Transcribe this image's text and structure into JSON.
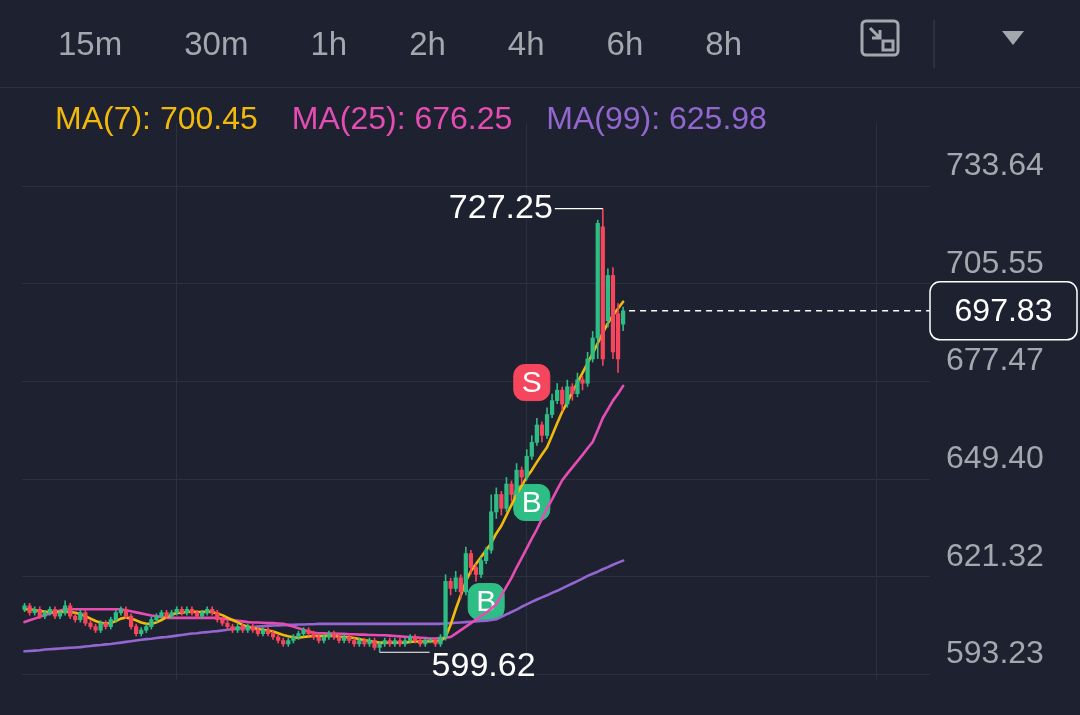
{
  "chart_data": {
    "type": "candlestick",
    "categories": [
      null,
      null,
      null,
      null,
      null,
      null,
      null,
      null,
      null,
      null,
      null,
      null,
      null,
      null,
      null,
      null,
      null,
      null,
      null,
      null,
      null,
      null,
      null,
      null,
      null,
      null,
      null,
      null,
      null,
      null,
      null,
      null,
      null,
      null,
      null,
      null,
      null,
      null,
      null,
      null,
      null,
      null,
      null,
      null,
      null,
      null,
      null,
      null,
      null,
      null,
      null,
      null,
      null,
      null,
      null,
      null,
      null,
      null,
      null,
      null,
      null,
      null,
      null,
      null,
      null,
      null,
      null,
      null,
      null,
      null,
      null,
      null,
      null,
      null,
      null,
      null,
      null,
      null,
      null,
      null,
      null,
      null,
      null,
      null,
      null,
      null,
      null,
      null,
      null,
      null,
      null,
      null,
      null,
      null,
      null,
      null,
      null,
      null,
      null,
      null,
      null,
      null,
      null,
      null,
      null,
      null,
      null,
      null,
      null,
      null,
      null,
      null,
      null,
      null,
      null,
      null,
      null,
      null,
      null
    ],
    "ohlc": [
      [
        612,
        613.8,
        611.2,
        613
      ],
      [
        613,
        613.8,
        610.2,
        611
      ],
      [
        611,
        612.8,
        610.2,
        612
      ],
      [
        612,
        612.8,
        609.2,
        610
      ],
      [
        610,
        611.8,
        609.2,
        611
      ],
      [
        611,
        612.8,
        610.2,
        612
      ],
      [
        612,
        612.8,
        609.2,
        610
      ],
      [
        610,
        611.8,
        609.2,
        611
      ],
      [
        611,
        614.5,
        610.2,
        613
      ],
      [
        613,
        613.8,
        609.2,
        610
      ],
      [
        610,
        610.8,
        608.2,
        609
      ],
      [
        609,
        611.8,
        608.2,
        611
      ],
      [
        611,
        611.8,
        607.2,
        608
      ],
      [
        608,
        608.8,
        606.2,
        607
      ],
      [
        607,
        607.8,
        605.2,
        606
      ],
      [
        606,
        608.8,
        605.2,
        608
      ],
      [
        608,
        608.8,
        606.2,
        607
      ],
      [
        607,
        609.8,
        606.2,
        609
      ],
      [
        609,
        611.8,
        608.2,
        611
      ],
      [
        611,
        612.8,
        610.2,
        612
      ],
      [
        612,
        612.8,
        609.2,
        610
      ],
      [
        610,
        610.8,
        606.2,
        607
      ],
      [
        607,
        607.8,
        604.2,
        605
      ],
      [
        605,
        606.8,
        604.2,
        606
      ],
      [
        606,
        607.8,
        605.2,
        607
      ],
      [
        607,
        609.8,
        606.2,
        609
      ],
      [
        609,
        610.8,
        608.2,
        610
      ],
      [
        610,
        611.8,
        609.2,
        611
      ],
      [
        611,
        611.8,
        609.2,
        610
      ],
      [
        610,
        611.8,
        609.2,
        611
      ],
      [
        611,
        612.8,
        610.2,
        612
      ],
      [
        612,
        612.8,
        610.2,
        611
      ],
      [
        611,
        612.8,
        610.2,
        612
      ],
      [
        612,
        612.8,
        610.2,
        611
      ],
      [
        611,
        611.8,
        609.2,
        610
      ],
      [
        610,
        611.8,
        609.2,
        611
      ],
      [
        611,
        612.8,
        610.2,
        612
      ],
      [
        612,
        612.8,
        610.2,
        611
      ],
      [
        611,
        611.8,
        608.2,
        609
      ],
      [
        609,
        609.8,
        607.2,
        608
      ],
      [
        608,
        608.8,
        606.2,
        607
      ],
      [
        607,
        607.8,
        605.2,
        606
      ],
      [
        606,
        607.8,
        605.2,
        607
      ],
      [
        607,
        607.8,
        605.2,
        606
      ],
      [
        606,
        607.8,
        605.2,
        607
      ],
      [
        607,
        607.8,
        605.2,
        606
      ],
      [
        606,
        606.8,
        604.2,
        605
      ],
      [
        605,
        606.8,
        604.2,
        606
      ],
      [
        606,
        606.8,
        604.2,
        605
      ],
      [
        605,
        605.8,
        603.2,
        604
      ],
      [
        604,
        604.8,
        602.2,
        603
      ],
      [
        603,
        603.8,
        601.2,
        602
      ],
      [
        602,
        603.8,
        601.2,
        603
      ],
      [
        603,
        604.8,
        602.2,
        604
      ],
      [
        604,
        605.8,
        603.2,
        605
      ],
      [
        605,
        606.8,
        604.2,
        606
      ],
      [
        606,
        606.8,
        604.2,
        605
      ],
      [
        605,
        605.8,
        603.2,
        604
      ],
      [
        604,
        604.8,
        602.2,
        603
      ],
      [
        603,
        604.8,
        602.2,
        604
      ],
      [
        604,
        605.8,
        603.2,
        605
      ],
      [
        605,
        605.8,
        603.2,
        604
      ],
      [
        604,
        604.8,
        602.2,
        603
      ],
      [
        603,
        604.8,
        602.2,
        604
      ],
      [
        604,
        604.8,
        602.2,
        603
      ],
      [
        603,
        603.8,
        601.2,
        602
      ],
      [
        602,
        603.8,
        601.2,
        603
      ],
      [
        603,
        603.8,
        601.2,
        602
      ],
      [
        602,
        603.8,
        601.2,
        603
      ],
      [
        603,
        603.8,
        600.2,
        601
      ],
      [
        601,
        602.8,
        599.62,
        602
      ],
      [
        602,
        603.8,
        601.2,
        603
      ],
      [
        603,
        603.8,
        601.2,
        602
      ],
      [
        602,
        603.8,
        601.2,
        603
      ],
      [
        603,
        603.8,
        601.2,
        602
      ],
      [
        602,
        603.8,
        601.2,
        603
      ],
      [
        603,
        604.8,
        602.2,
        604
      ],
      [
        604,
        604.8,
        602.2,
        603
      ],
      [
        603,
        603.8,
        601.2,
        602
      ],
      [
        602,
        603.8,
        601.2,
        603
      ],
      [
        603,
        603.8,
        602.2,
        603
      ],
      [
        603,
        603.8,
        601.2,
        602
      ],
      [
        602,
        604.8,
        601.2,
        604
      ],
      [
        604,
        622,
        603,
        620
      ],
      [
        620,
        621,
        616,
        618
      ],
      [
        618,
        623,
        617,
        621
      ],
      [
        621,
        622,
        615,
        617
      ],
      [
        617,
        630,
        616,
        628
      ],
      [
        628,
        629,
        622,
        624
      ],
      [
        624,
        625,
        620,
        622
      ],
      [
        622,
        627,
        621,
        626
      ],
      [
        626,
        630,
        625,
        629
      ],
      [
        629,
        645,
        628,
        640
      ],
      [
        640,
        647,
        638,
        645
      ],
      [
        645,
        646,
        639,
        641
      ],
      [
        641,
        650,
        640,
        648
      ],
      [
        648,
        649,
        643,
        645
      ],
      [
        645,
        654,
        644,
        652
      ],
      [
        652,
        653,
        648,
        650
      ],
      [
        650,
        658,
        649,
        656
      ],
      [
        656,
        662,
        655,
        660
      ],
      [
        660,
        667,
        659,
        665
      ],
      [
        665,
        666,
        660,
        662
      ],
      [
        662,
        670,
        661,
        668
      ],
      [
        668,
        674,
        667,
        672
      ],
      [
        672,
        677,
        671,
        675
      ],
      [
        675,
        676,
        669,
        671
      ],
      [
        671,
        678,
        670,
        676
      ],
      [
        676,
        677,
        672,
        674
      ],
      [
        674,
        680,
        673,
        678
      ],
      [
        678,
        679,
        675,
        677
      ],
      [
        677,
        686,
        676,
        684
      ],
      [
        684,
        692,
        683,
        690
      ],
      [
        690,
        724,
        684,
        723
      ],
      [
        722,
        727.25,
        682,
        684
      ],
      [
        695,
        710,
        693,
        708
      ],
      [
        708,
        710.4,
        684,
        686
      ],
      [
        697,
        700,
        680,
        684
      ],
      [
        694,
        699,
        692,
        697.83
      ]
    ],
    "colors": [
      "#2ebd85",
      "#f6465d",
      "#2ebd85",
      "#f6465d",
      "#2ebd85",
      "#2ebd85",
      "#f6465d",
      "#2ebd85",
      "#2ebd85",
      "#f6465d",
      "#f6465d",
      "#2ebd85",
      "#f6465d",
      "#f6465d",
      "#f6465d",
      "#2ebd85",
      "#f6465d",
      "#2ebd85",
      "#2ebd85",
      "#2ebd85",
      "#f6465d",
      "#f6465d",
      "#f6465d",
      "#2ebd85",
      "#2ebd85",
      "#2ebd85",
      "#2ebd85",
      "#2ebd85",
      "#f6465d",
      "#2ebd85",
      "#2ebd85",
      "#f6465d",
      "#2ebd85",
      "#f6465d",
      "#f6465d",
      "#2ebd85",
      "#2ebd85",
      "#f6465d",
      "#f6465d",
      "#f6465d",
      "#f6465d",
      "#f6465d",
      "#2ebd85",
      "#f6465d",
      "#2ebd85",
      "#f6465d",
      "#f6465d",
      "#2ebd85",
      "#f6465d",
      "#f6465d",
      "#f6465d",
      "#f6465d",
      "#2ebd85",
      "#2ebd85",
      "#2ebd85",
      "#2ebd85",
      "#f6465d",
      "#f6465d",
      "#f6465d",
      "#2ebd85",
      "#2ebd85",
      "#f6465d",
      "#f6465d",
      "#2ebd85",
      "#f6465d",
      "#f6465d",
      "#2ebd85",
      "#f6465d",
      "#2ebd85",
      "#f6465d",
      "#2ebd85",
      "#2ebd85",
      "#f6465d",
      "#2ebd85",
      "#f6465d",
      "#2ebd85",
      "#2ebd85",
      "#f6465d",
      "#f6465d",
      "#2ebd85",
      "#2ebd85",
      "#f6465d",
      "#2ebd85",
      "#2ebd85",
      "#f6465d",
      "#2ebd85",
      "#f6465d",
      "#2ebd85",
      "#f6465d",
      "#f6465d",
      "#2ebd85",
      "#2ebd85",
      "#2ebd85",
      "#2ebd85",
      "#f6465d",
      "#2ebd85",
      "#f6465d",
      "#2ebd85",
      "#f6465d",
      "#2ebd85",
      "#2ebd85",
      "#2ebd85",
      "#f6465d",
      "#2ebd85",
      "#2ebd85",
      "#2ebd85",
      "#f6465d",
      "#2ebd85",
      "#f6465d",
      "#2ebd85",
      "#f6465d",
      "#2ebd85",
      "#2ebd85",
      "#2ebd85",
      "#f6465d",
      "#2ebd85",
      "#f6465d",
      "#f6465d",
      "#2ebd85"
    ],
    "series": [
      {
        "type": "line",
        "name": "MA(7): 700.45",
        "color": "#f0b90b",
        "values": [
          612,
          612,
          611.8,
          611.5,
          611.3,
          611.2,
          611.1,
          611.2,
          611.3,
          611.2,
          611,
          610.6,
          610,
          609.3,
          608.6,
          608.1,
          607.9,
          608,
          608.6,
          609.3,
          609.6,
          609.3,
          608.8,
          608.2,
          607.8,
          607.8,
          608.2,
          608.9,
          609.7,
          610.4,
          610.9,
          611,
          611.2,
          611.3,
          611.2,
          611.2,
          611.3,
          611.2,
          610.8,
          610.3,
          609.6,
          608.9,
          608.2,
          607.5,
          607,
          606.6,
          606.3,
          606.1,
          605.9,
          605.6,
          605.1,
          604.6,
          604.2,
          603.9,
          603.8,
          604,
          604.2,
          604.3,
          604.3,
          604.3,
          604.4,
          604.3,
          604.1,
          604,
          603.9,
          603.7,
          603.4,
          603.1,
          602.9,
          602.6,
          602.4,
          602.4,
          602.4,
          602.4,
          602.4,
          602.4,
          602.6,
          602.7,
          602.7,
          602.7,
          602.8,
          602.8,
          602.9,
          604,
          607.5,
          612,
          616,
          620,
          623,
          625,
          627,
          629,
          631,
          633.8,
          636,
          639,
          642,
          645,
          647.5,
          650,
          652,
          654.3,
          656.5,
          658.6,
          662,
          665.5,
          668.8,
          671.5,
          674.5,
          677.2,
          680,
          682.8,
          685.6,
          688.5,
          691.5,
          694.3,
          696.5,
          698.5,
          700.45
        ]
      },
      {
        "type": "line",
        "name": "MA(25): 676.25",
        "color": "#e54db4",
        "values": [
          608.3,
          608.8,
          609.3,
          609.8,
          610.3,
          610.8,
          611.2,
          611.6,
          612,
          612,
          612,
          612,
          612,
          612,
          612,
          612,
          612,
          612,
          612,
          612,
          611.7,
          611.4,
          611.1,
          610.8,
          610.5,
          610.2,
          610,
          609.8,
          609.5,
          609.5,
          609.5,
          609.5,
          609.5,
          609.5,
          609.5,
          609.5,
          609.5,
          609.5,
          609.5,
          609.3,
          609.1,
          608.9,
          608.7,
          608.5,
          608.3,
          608.2,
          608.2,
          608.1,
          608,
          608,
          607.9,
          607.8,
          607.4,
          607,
          606.5,
          606.1,
          605.6,
          605.2,
          605.1,
          605.1,
          605,
          605,
          604.9,
          604.9,
          604.8,
          604.8,
          604.7,
          604.7,
          604.6,
          604.6,
          604.5,
          604.5,
          604.4,
          604.3,
          604.2,
          604.1,
          604,
          603.9,
          603.8,
          603.7,
          603.6,
          603.6,
          603.7,
          603.8,
          604,
          605,
          606,
          607,
          608,
          609,
          610,
          611,
          612.2,
          613.4,
          616,
          618.5,
          621,
          624,
          626.7,
          629.5,
          632.3,
          635,
          638,
          641,
          643.6,
          646.4,
          649.1,
          651,
          652.8,
          654.6,
          656.4,
          658.3,
          660.1,
          663.5,
          667,
          669.5,
          672,
          674,
          676.25
        ]
      },
      {
        "type": "line",
        "name": "MA(99): 625.98",
        "color": "#9366d0",
        "values": [
          599.9,
          600,
          600.1,
          600.2,
          600.4,
          600.5,
          600.6,
          600.7,
          600.8,
          600.9,
          601,
          601.1,
          601.3,
          601.4,
          601.6,
          601.7,
          601.9,
          602,
          602.2,
          602.4,
          602.6,
          602.8,
          603,
          603.2,
          603.4,
          603.5,
          603.7,
          603.9,
          604,
          604.2,
          604.4,
          604.6,
          604.8,
          605,
          605.1,
          605.3,
          605.4,
          605.6,
          605.7,
          605.9,
          606.1,
          606.3,
          606.5,
          606.7,
          606.8,
          606.9,
          607,
          607.1,
          607.2,
          607.3,
          607.3,
          607.4,
          607.5,
          607.5,
          607.6,
          607.6,
          607.7,
          607.7,
          607.8,
          607.8,
          607.8,
          607.8,
          607.8,
          607.8,
          607.8,
          607.8,
          607.8,
          607.8,
          607.8,
          607.8,
          607.8,
          607.8,
          607.8,
          607.8,
          607.8,
          607.8,
          607.8,
          607.8,
          607.8,
          607.8,
          607.8,
          607.8,
          607.8,
          607.9,
          608,
          608.1,
          608.2,
          608.3,
          608.4,
          608.5,
          608.6,
          608.7,
          608.9,
          609.1,
          609.8,
          610.5,
          611.2,
          611.9,
          612.7,
          613.4,
          614.1,
          614.8,
          615.4,
          616,
          616.7,
          617.3,
          618,
          618.7,
          619.4,
          620.1,
          620.8,
          621.6,
          622.2,
          622.8,
          623.5,
          624.1,
          624.8,
          625.4,
          625.98
        ]
      },
      {
        "type": "scatter",
        "color": "#2ebd85",
        "marker": "square",
        "values": [
          null,
          null,
          null,
          null,
          null,
          null,
          null,
          null,
          null,
          null,
          null,
          null,
          null,
          null,
          null,
          null,
          null,
          null,
          null,
          null,
          null,
          null,
          null,
          null,
          null,
          null,
          null,
          null,
          null,
          null,
          null,
          null,
          null,
          null,
          null,
          null,
          null,
          null,
          null,
          null,
          null,
          null,
          null,
          null,
          null,
          null,
          null,
          null,
          null,
          null,
          null,
          null,
          null,
          null,
          null,
          null,
          null,
          null,
          null,
          null,
          null,
          null,
          null,
          null,
          null,
          null,
          null,
          null,
          null,
          null,
          null,
          null,
          null,
          null,
          null,
          null,
          null,
          null,
          null,
          null,
          null,
          null,
          null,
          null,
          null,
          null,
          null,
          null,
          null,
          null,
          null,
          614.2,
          null,
          null,
          null,
          null,
          null,
          null,
          null,
          null,
          642.7,
          null,
          null,
          null,
          null,
          null,
          null,
          null,
          null,
          null,
          null,
          null,
          null,
          null,
          null,
          null,
          null,
          null,
          null
        ],
        "value_labels": [
          null,
          null,
          null,
          null,
          null,
          null,
          null,
          null,
          null,
          null,
          null,
          null,
          null,
          null,
          null,
          null,
          null,
          null,
          null,
          null,
          null,
          null,
          null,
          null,
          null,
          null,
          null,
          null,
          null,
          null,
          null,
          null,
          null,
          null,
          null,
          null,
          null,
          null,
          null,
          null,
          null,
          null,
          null,
          null,
          null,
          null,
          null,
          null,
          null,
          null,
          null,
          null,
          null,
          null,
          null,
          null,
          null,
          null,
          null,
          null,
          null,
          null,
          null,
          null,
          null,
          null,
          null,
          null,
          null,
          null,
          null,
          null,
          null,
          null,
          null,
          null,
          null,
          null,
          null,
          null,
          null,
          null,
          null,
          null,
          null,
          null,
          null,
          null,
          null,
          null,
          null,
          "B",
          null,
          null,
          null,
          null,
          null,
          null,
          null,
          null,
          "B",
          null,
          null,
          null,
          null,
          null,
          null,
          null,
          null,
          null,
          null,
          null,
          null,
          null,
          null,
          null,
          null,
          null,
          null
        ]
      },
      {
        "type": "scatter",
        "color": "#f6465d",
        "marker": "square",
        "values": [
          null,
          null,
          null,
          null,
          null,
          null,
          null,
          null,
          null,
          null,
          null,
          null,
          null,
          null,
          null,
          null,
          null,
          null,
          null,
          null,
          null,
          null,
          null,
          null,
          null,
          null,
          null,
          null,
          null,
          null,
          null,
          null,
          null,
          null,
          null,
          null,
          null,
          null,
          null,
          null,
          null,
          null,
          null,
          null,
          null,
          null,
          null,
          null,
          null,
          null,
          null,
          null,
          null,
          null,
          null,
          null,
          null,
          null,
          null,
          null,
          null,
          null,
          null,
          null,
          null,
          null,
          null,
          null,
          null,
          null,
          null,
          null,
          null,
          null,
          null,
          null,
          null,
          null,
          null,
          null,
          null,
          null,
          null,
          null,
          null,
          null,
          null,
          null,
          null,
          null,
          null,
          null,
          null,
          null,
          null,
          null,
          null,
          null,
          null,
          null,
          677.2,
          null,
          null,
          null,
          null,
          null,
          null,
          null,
          null,
          null,
          null,
          null,
          null,
          null,
          null,
          null,
          null,
          null,
          null
        ],
        "value_labels": [
          null,
          null,
          null,
          null,
          null,
          null,
          null,
          null,
          null,
          null,
          null,
          null,
          null,
          null,
          null,
          null,
          null,
          null,
          null,
          null,
          null,
          null,
          null,
          null,
          null,
          null,
          null,
          null,
          null,
          null,
          null,
          null,
          null,
          null,
          null,
          null,
          null,
          null,
          null,
          null,
          null,
          null,
          null,
          null,
          null,
          null,
          null,
          null,
          null,
          null,
          null,
          null,
          null,
          null,
          null,
          null,
          null,
          null,
          null,
          null,
          null,
          null,
          null,
          null,
          null,
          null,
          null,
          null,
          null,
          null,
          null,
          null,
          null,
          null,
          null,
          null,
          null,
          null,
          null,
          null,
          null,
          null,
          null,
          null,
          null,
          null,
          null,
          null,
          null,
          null,
          null,
          null,
          null,
          null,
          null,
          null,
          null,
          null,
          null,
          null,
          "S",
          null,
          null,
          null,
          null,
          null,
          null,
          null,
          null,
          null,
          null,
          null,
          null,
          null,
          null,
          null,
          null,
          null,
          null
        ]
      }
    ],
    "ylim": [
      591.7,
      751.8
    ],
    "yticks": [
      593.23,
      621.32,
      {
        "value": 649.4,
        "label": "649.40"
      },
      677.47,
      705.55,
      733.64
    ],
    "grid": true,
    "legend": "top",
    "ref_lines": [
      {
        "axis": "y",
        "value": 697.83,
        "label": "697.83",
        "line_style": "dashed",
        "color": "#ffffff"
      }
    ],
    "annotations": [
      "15m",
      "30m",
      "1h",
      "2h",
      "4h",
      "6h",
      "8h",
      {
        "text": "727.25"
      },
      {
        "text": "599.62"
      }
    ]
  }
}
